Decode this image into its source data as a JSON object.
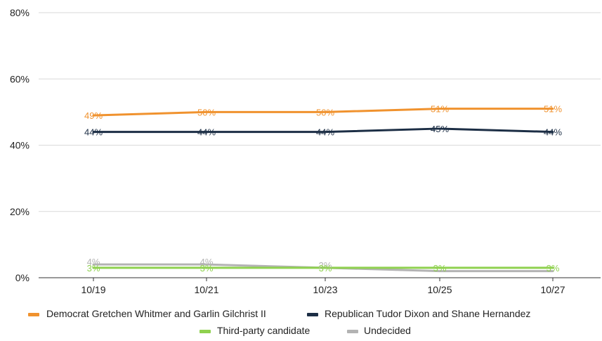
{
  "chart_data": {
    "type": "line",
    "categories": [
      "10/19",
      "10/21",
      "10/23",
      "10/25",
      "10/27"
    ],
    "ylim": [
      0,
      80
    ],
    "yticks": [
      0,
      20,
      40,
      60,
      80
    ],
    "ytick_labels": [
      "0%",
      "20%",
      "40%",
      "60%",
      "80%"
    ],
    "grid": "horizontal",
    "legend_position": "bottom",
    "series": [
      {
        "name": "Democrat Gretchen Whitmer and Garlin Gilchrist II",
        "color": "#F0922E",
        "values": [
          49,
          50,
          50,
          51,
          51
        ],
        "labels": [
          "49%",
          "50%",
          "50%",
          "51%",
          "51%"
        ]
      },
      {
        "name": "Republican Tudor Dixon and Shane Hernandez",
        "color": "#1C2E45",
        "values": [
          44,
          44,
          44,
          45,
          44
        ],
        "labels": [
          "44%",
          "44%",
          "44%",
          "45%",
          "44%"
        ]
      },
      {
        "name": "Third-party candidate",
        "color": "#8FD14F",
        "values": [
          3,
          3,
          3,
          3,
          3
        ],
        "labels": [
          "3%",
          "3%",
          "3%",
          "3%",
          "3%"
        ]
      },
      {
        "name": "Undecided",
        "color": "#B3B3B3",
        "values": [
          4,
          4,
          3,
          2,
          2
        ],
        "labels": [
          "4%",
          "4%",
          "3%",
          "",
          ""
        ]
      }
    ]
  }
}
